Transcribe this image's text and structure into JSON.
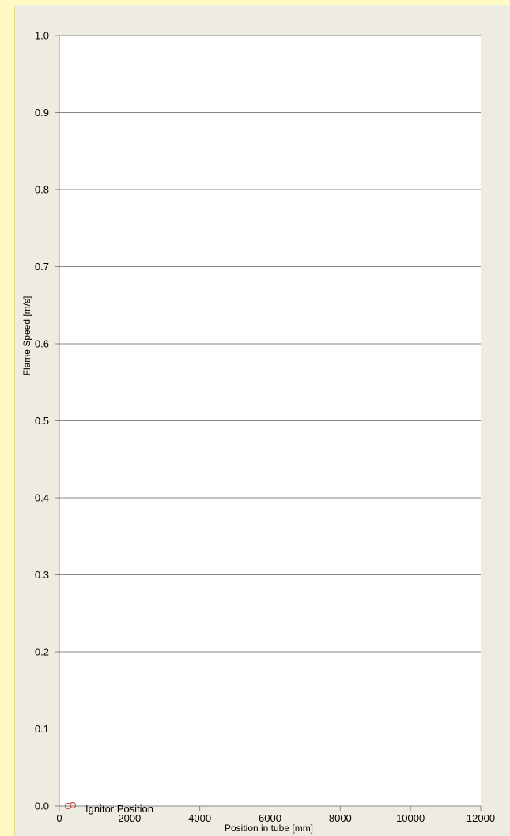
{
  "chart_data": {
    "type": "scatter",
    "title": "",
    "xlabel": "Position in tube [mm]",
    "ylabel": "Flame Speed [m/s]",
    "xlim": [
      0,
      12000
    ],
    "ylim": [
      0.0,
      1.0
    ],
    "x_ticks": [
      0,
      2000,
      4000,
      6000,
      8000,
      10000,
      12000
    ],
    "y_ticks": [
      "0.0",
      "0.1",
      "0.2",
      "0.3",
      "0.4",
      "0.5",
      "0.6",
      "0.7",
      "0.8",
      "0.9",
      "1.0"
    ],
    "grid": "horizontal",
    "series": [
      {
        "name": "Ignitor Position",
        "marker": "open-circle",
        "color": "#c0504d",
        "points": [
          {
            "x": 250,
            "y": 0.0
          }
        ]
      }
    ],
    "legend": {
      "placement": "bottom-left, overlapping plot"
    }
  },
  "colors": {
    "background": "#eeece1",
    "plot_area": "#ffffff",
    "gridline": "#868686",
    "left_strip": "#fff9c4"
  }
}
